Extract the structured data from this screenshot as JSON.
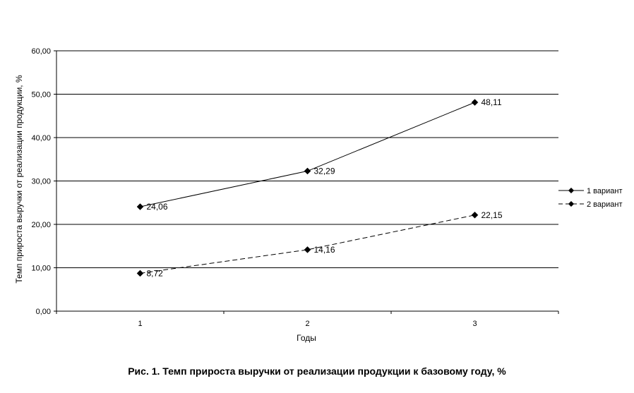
{
  "caption": "Рис. 1. Темп прироста выручки от реализации продукции к базовому году, %",
  "chart_data": {
    "type": "line",
    "title": "",
    "xlabel": "Годы",
    "ylabel": "Темп прироста выручки от реализации продукции, %",
    "categories": [
      "1",
      "2",
      "3"
    ],
    "ylim": [
      0,
      60
    ],
    "yticks": [
      0,
      10,
      20,
      30,
      40,
      50,
      60
    ],
    "ytick_labels": [
      "0,00",
      "10,00",
      "20,00",
      "30,00",
      "40,00",
      "50,00",
      "60,00"
    ],
    "grid": "horizontal",
    "legend_position": "right",
    "series": [
      {
        "name": "1 вариант",
        "values": [
          24.06,
          32.29,
          48.11
        ],
        "labels": [
          "24,06",
          "32,29",
          "48,11"
        ],
        "line_style": "solid",
        "marker": "diamond",
        "color": "#000000"
      },
      {
        "name": "2 вариант",
        "values": [
          8.72,
          14.16,
          22.15
        ],
        "labels": [
          "8,72",
          "14,16",
          "22,15"
        ],
        "line_style": "dashed",
        "marker": "diamond",
        "color": "#000000"
      }
    ]
  }
}
